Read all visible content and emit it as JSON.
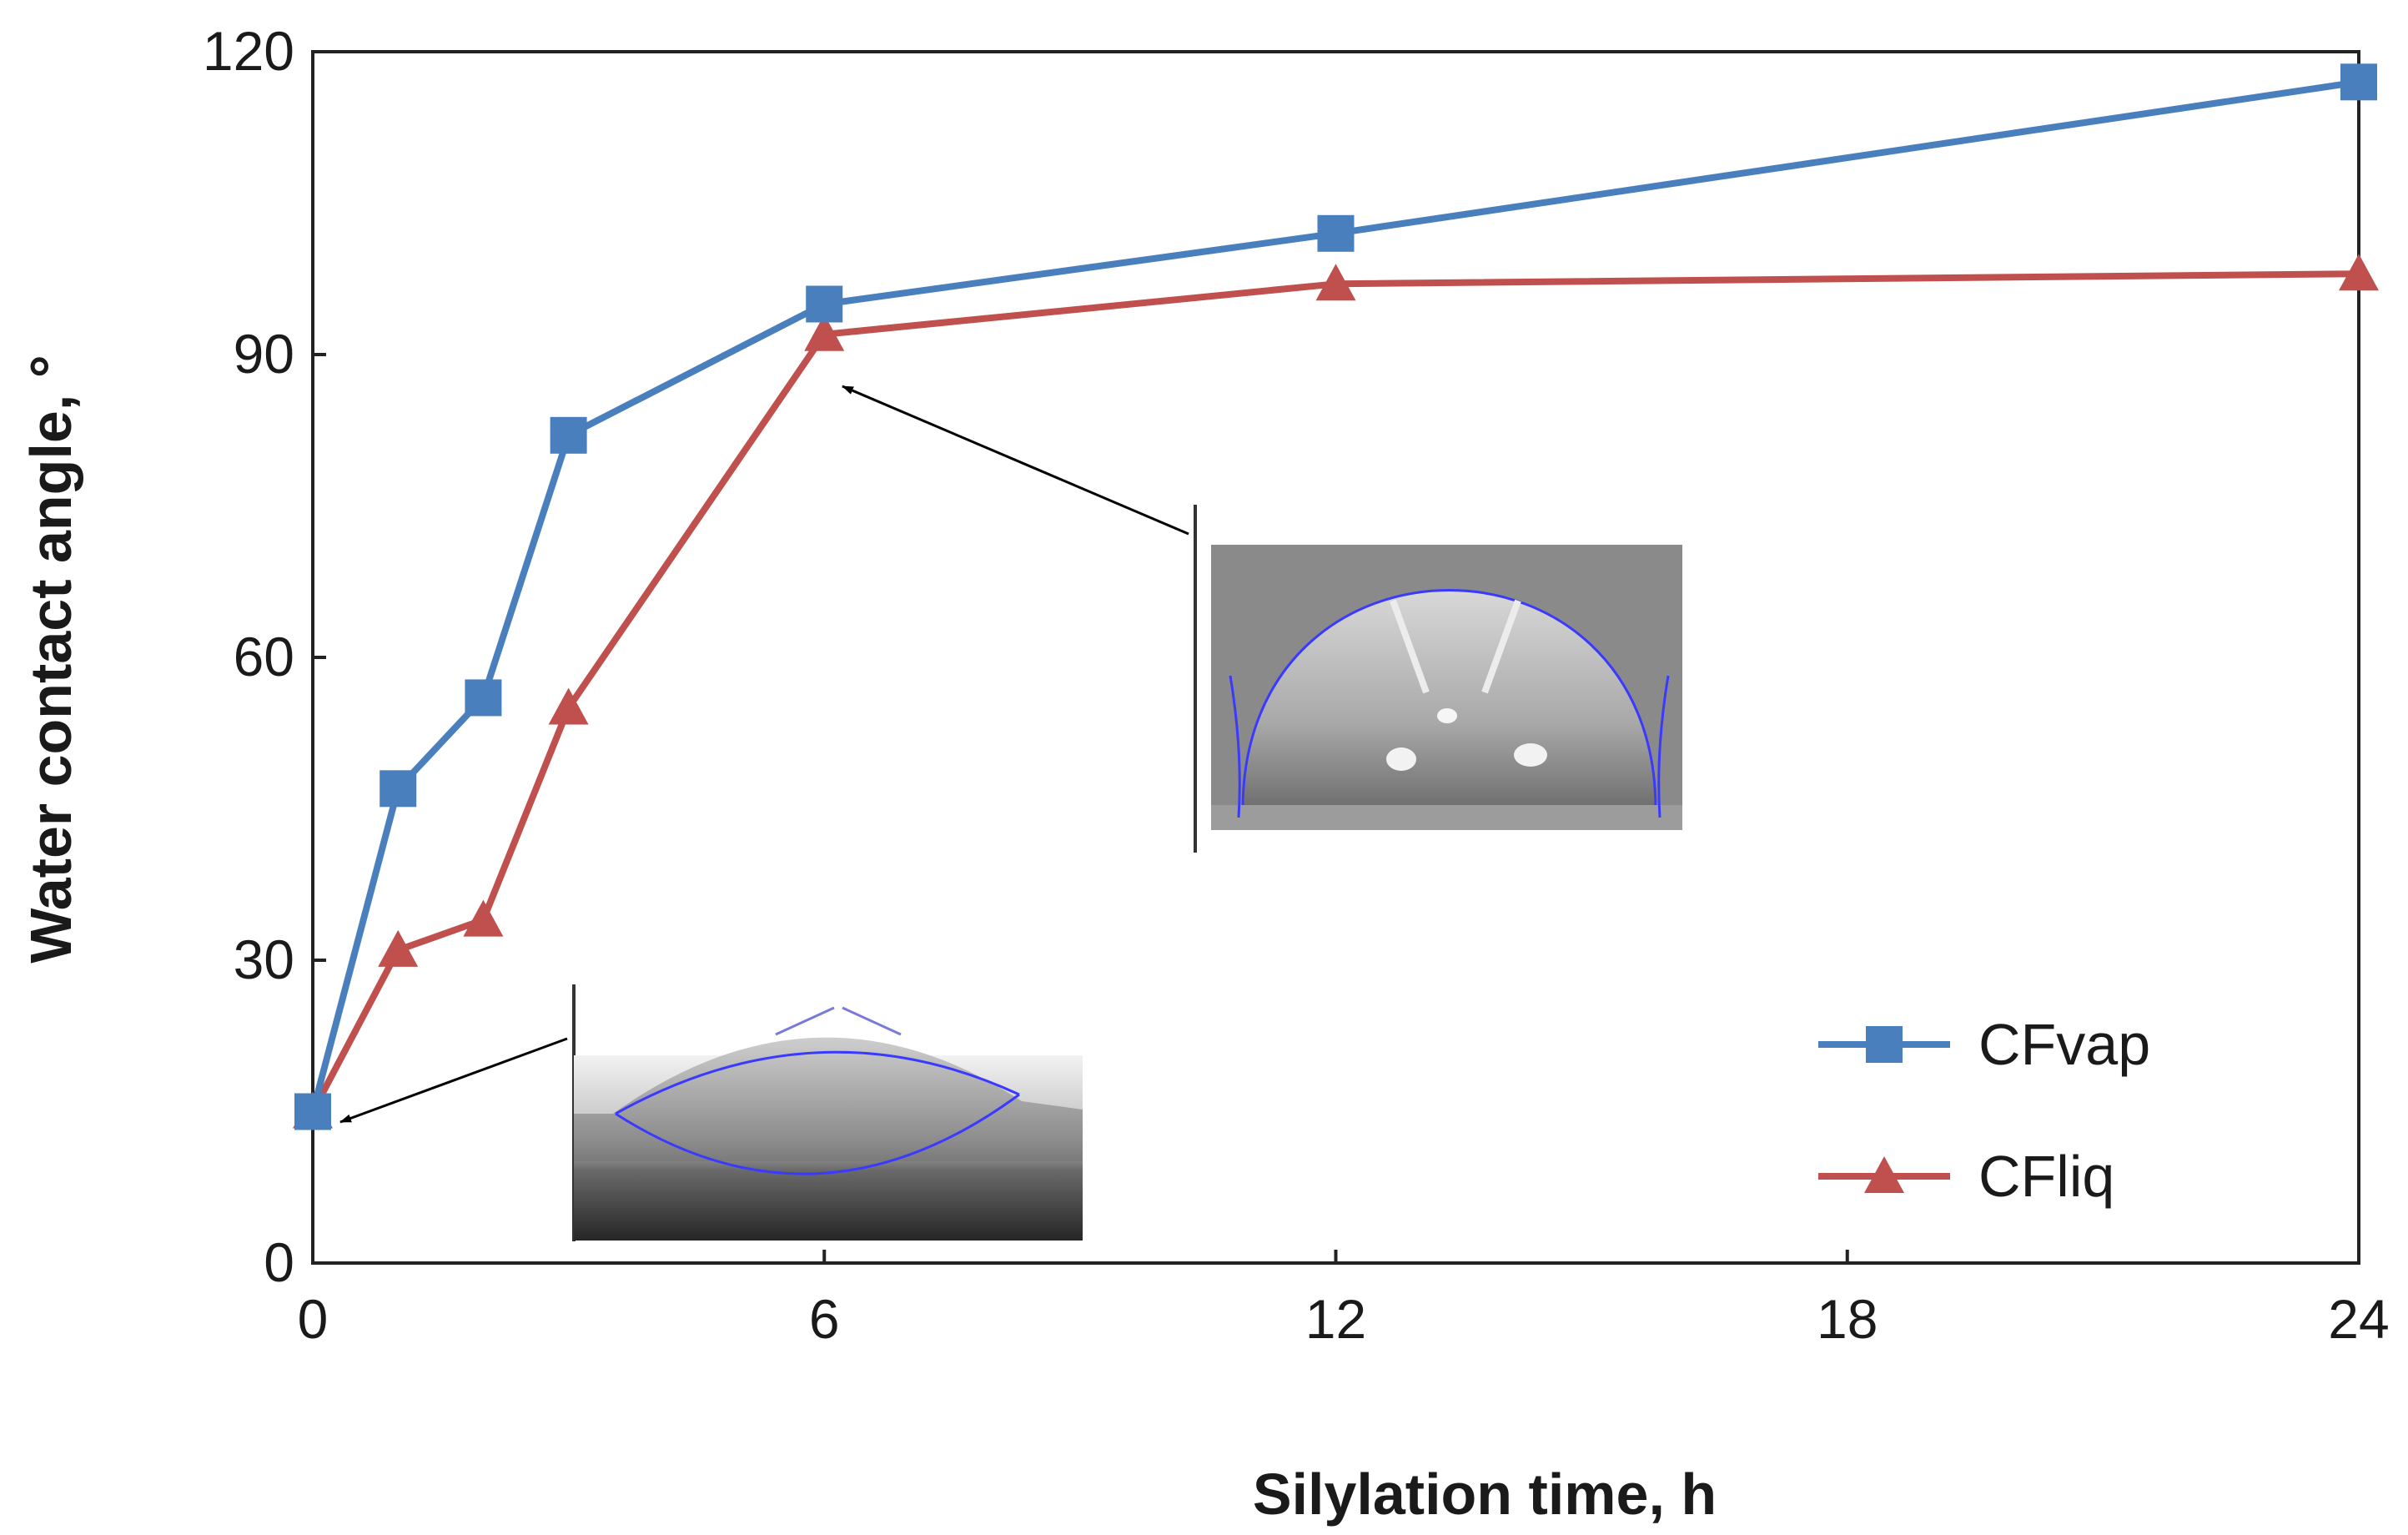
{
  "chart_data": {
    "type": "line",
    "title": "",
    "xlabel": "Silylation time, h",
    "ylabel": "Water contact angle, °",
    "xlim": [
      0,
      24
    ],
    "ylim": [
      0,
      120
    ],
    "xticks": [
      0,
      6,
      12,
      18,
      24
    ],
    "yticks": [
      0,
      30,
      60,
      90,
      120
    ],
    "grid": false,
    "legend_position": "bottom-right",
    "series": [
      {
        "name": "CFvap",
        "color": "#4a7fbd",
        "marker": "square",
        "x": [
          0,
          1,
          2,
          3,
          6,
          12,
          24
        ],
        "y": [
          15,
          47,
          56,
          82,
          95,
          102,
          117
        ]
      },
      {
        "name": "CFliq",
        "color": "#c0504d",
        "marker": "triangle",
        "x": [
          0,
          1,
          2,
          3,
          6,
          12,
          24
        ],
        "y": [
          15,
          31,
          34,
          55,
          92,
          97,
          98
        ]
      }
    ],
    "annotations": [
      {
        "type": "inset-photo",
        "description": "water droplet image",
        "points_to": {
          "x": 0,
          "y": 15
        }
      },
      {
        "type": "inset-photo",
        "description": "water droplet image",
        "points_to": {
          "x": 6,
          "y": 92
        }
      }
    ]
  }
}
